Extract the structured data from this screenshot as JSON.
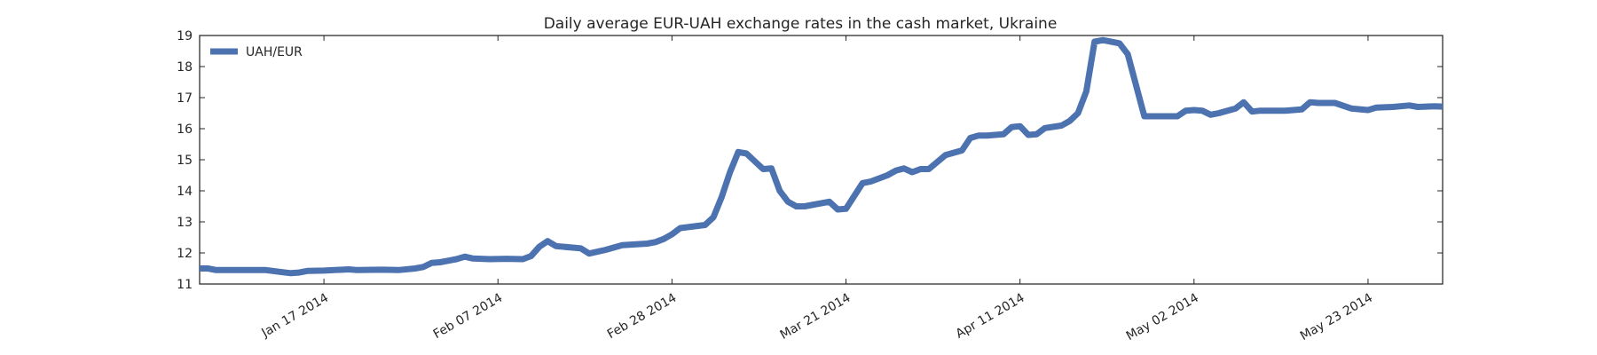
{
  "chart_data": {
    "type": "line",
    "title": "Daily average EUR-UAH exchange rates in the cash market, Ukraine",
    "xlabel": "",
    "ylabel": "",
    "ylim": [
      11,
      19
    ],
    "yticks": [
      "11",
      "12",
      "13",
      "14",
      "15",
      "16",
      "17",
      "18",
      "19"
    ],
    "xlim": [
      "2014-01-02",
      "2014-06-01"
    ],
    "xticks": [
      {
        "date": "2014-01-17",
        "label": "Jan 17 2014"
      },
      {
        "date": "2014-02-07",
        "label": "Feb 07 2014"
      },
      {
        "date": "2014-02-28",
        "label": "Feb 28 2014"
      },
      {
        "date": "2014-03-21",
        "label": "Mar 21 2014"
      },
      {
        "date": "2014-04-11",
        "label": "Apr 11 2014"
      },
      {
        "date": "2014-05-02",
        "label": "May 02 2014"
      },
      {
        "date": "2014-05-23",
        "label": "May 23 2014"
      }
    ],
    "grid": false,
    "legend_position": "top-left",
    "series": [
      {
        "name": "UAH/EUR",
        "color": "#4C72B0",
        "points": [
          [
            "2014-01-02",
            11.5
          ],
          [
            "2014-01-03",
            11.5
          ],
          [
            "2014-01-04",
            11.45
          ],
          [
            "2014-01-06",
            11.45
          ],
          [
            "2014-01-08",
            11.45
          ],
          [
            "2014-01-10",
            11.45
          ],
          [
            "2014-01-12",
            11.38
          ],
          [
            "2014-01-13",
            11.35
          ],
          [
            "2014-01-14",
            11.37
          ],
          [
            "2014-01-15",
            11.42
          ],
          [
            "2014-01-17",
            11.43
          ],
          [
            "2014-01-20",
            11.47
          ],
          [
            "2014-01-21",
            11.45
          ],
          [
            "2014-01-24",
            11.46
          ],
          [
            "2014-01-26",
            11.45
          ],
          [
            "2014-01-28",
            11.5
          ],
          [
            "2014-01-29",
            11.55
          ],
          [
            "2014-01-30",
            11.68
          ],
          [
            "2014-01-31",
            11.7
          ],
          [
            "2014-02-02",
            11.8
          ],
          [
            "2014-02-03",
            11.88
          ],
          [
            "2014-02-04",
            11.82
          ],
          [
            "2014-02-06",
            11.8
          ],
          [
            "2014-02-08",
            11.81
          ],
          [
            "2014-02-10",
            11.8
          ],
          [
            "2014-02-11",
            11.9
          ],
          [
            "2014-02-12",
            12.2
          ],
          [
            "2014-02-13",
            12.38
          ],
          [
            "2014-02-14",
            12.22
          ],
          [
            "2014-02-17",
            12.15
          ],
          [
            "2014-02-18",
            11.98
          ],
          [
            "2014-02-20",
            12.1
          ],
          [
            "2014-02-22",
            12.25
          ],
          [
            "2014-02-25",
            12.3
          ],
          [
            "2014-02-26",
            12.35
          ],
          [
            "2014-02-27",
            12.45
          ],
          [
            "2014-02-28",
            12.6
          ],
          [
            "2014-03-01",
            12.8
          ],
          [
            "2014-03-04",
            12.9
          ],
          [
            "2014-03-05",
            13.15
          ],
          [
            "2014-03-06",
            13.8
          ],
          [
            "2014-03-07",
            14.6
          ],
          [
            "2014-03-08",
            15.25
          ],
          [
            "2014-03-09",
            15.2
          ],
          [
            "2014-03-11",
            14.7
          ],
          [
            "2014-03-12",
            14.72
          ],
          [
            "2014-03-13",
            14.0
          ],
          [
            "2014-03-14",
            13.65
          ],
          [
            "2014-03-15",
            13.5
          ],
          [
            "2014-03-16",
            13.5
          ],
          [
            "2014-03-19",
            13.65
          ],
          [
            "2014-03-20",
            13.4
          ],
          [
            "2014-03-21",
            13.42
          ],
          [
            "2014-03-23",
            14.25
          ],
          [
            "2014-03-24",
            14.3
          ],
          [
            "2014-03-26",
            14.5
          ],
          [
            "2014-03-27",
            14.65
          ],
          [
            "2014-03-28",
            14.72
          ],
          [
            "2014-03-29",
            14.6
          ],
          [
            "2014-03-30",
            14.7
          ],
          [
            "2014-03-31",
            14.7
          ],
          [
            "2014-04-02",
            15.15
          ],
          [
            "2014-04-04",
            15.3
          ],
          [
            "2014-04-05",
            15.7
          ],
          [
            "2014-04-06",
            15.78
          ],
          [
            "2014-04-07",
            15.78
          ],
          [
            "2014-04-09",
            15.82
          ],
          [
            "2014-04-10",
            16.05
          ],
          [
            "2014-04-11",
            16.08
          ],
          [
            "2014-04-12",
            15.8
          ],
          [
            "2014-04-13",
            15.82
          ],
          [
            "2014-04-14",
            16.02
          ],
          [
            "2014-04-16",
            16.1
          ],
          [
            "2014-04-17",
            16.25
          ],
          [
            "2014-04-18",
            16.5
          ],
          [
            "2014-04-19",
            17.2
          ],
          [
            "2014-04-20",
            18.8
          ],
          [
            "2014-04-21",
            18.85
          ],
          [
            "2014-04-23",
            18.75
          ],
          [
            "2014-04-24",
            18.4
          ],
          [
            "2014-04-26",
            16.4
          ],
          [
            "2014-04-28",
            16.4
          ],
          [
            "2014-04-30",
            16.4
          ],
          [
            "2014-05-01",
            16.58
          ],
          [
            "2014-05-02",
            16.6
          ],
          [
            "2014-05-03",
            16.58
          ],
          [
            "2014-05-04",
            16.45
          ],
          [
            "2014-05-05",
            16.5
          ],
          [
            "2014-05-07",
            16.65
          ],
          [
            "2014-05-08",
            16.85
          ],
          [
            "2014-05-09",
            16.55
          ],
          [
            "2014-05-10",
            16.58
          ],
          [
            "2014-05-13",
            16.58
          ],
          [
            "2014-05-15",
            16.62
          ],
          [
            "2014-05-16",
            16.85
          ],
          [
            "2014-05-17",
            16.83
          ],
          [
            "2014-05-19",
            16.83
          ],
          [
            "2014-05-21",
            16.65
          ],
          [
            "2014-05-23",
            16.6
          ],
          [
            "2014-05-24",
            16.68
          ],
          [
            "2014-05-26",
            16.7
          ],
          [
            "2014-05-28",
            16.75
          ],
          [
            "2014-05-29",
            16.7
          ],
          [
            "2014-05-31",
            16.72
          ],
          [
            "2014-06-02",
            16.7
          ],
          [
            "2014-06-03",
            16.62
          ],
          [
            "2014-06-04",
            16.55
          ],
          [
            "2014-06-05",
            16.45
          ],
          [
            "2014-06-07",
            16.45
          ]
        ]
      }
    ]
  }
}
